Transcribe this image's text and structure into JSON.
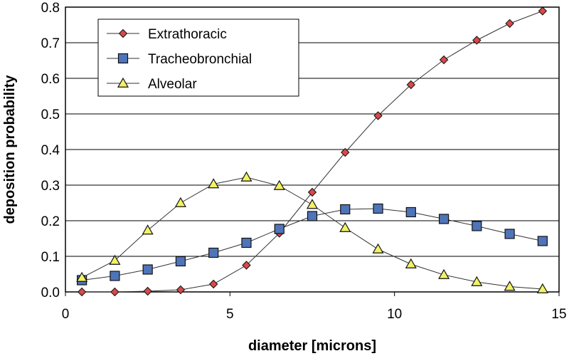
{
  "chart_data": {
    "type": "line",
    "title": "",
    "xlabel": "diameter [microns]",
    "ylabel": "deposition probability",
    "xlim": [
      0,
      15
    ],
    "ylim": [
      0,
      0.8
    ],
    "x_ticks": [
      "0",
      "5",
      "10",
      "15"
    ],
    "y_ticks": [
      "0.0",
      "0.1",
      "0.2",
      "0.3",
      "0.4",
      "0.5",
      "0.6",
      "0.7",
      "0.8"
    ],
    "grid": "horizontal",
    "legend_position": "top-left",
    "x": [
      0.5,
      1.5,
      2.5,
      3.5,
      4.5,
      5.5,
      6.5,
      7.5,
      8.5,
      9.5,
      10.5,
      11.5,
      12.5,
      13.5,
      14.5
    ],
    "series": [
      {
        "name": "Extrathoracic",
        "marker": "diamond",
        "color": "#d94848",
        "values": [
          0.0,
          0.0,
          0.002,
          0.006,
          0.022,
          0.075,
          0.165,
          0.28,
          0.392,
          0.495,
          0.582,
          0.652,
          0.707,
          0.754,
          0.789
        ]
      },
      {
        "name": "Tracheobronchial",
        "marker": "square",
        "color": "#4f74b8",
        "values": [
          0.033,
          0.045,
          0.063,
          0.086,
          0.11,
          0.138,
          0.177,
          0.213,
          0.232,
          0.234,
          0.224,
          0.205,
          0.185,
          0.163,
          0.143
        ]
      },
      {
        "name": "Alveolar",
        "marker": "triangle",
        "color": "#f2f266",
        "values": [
          0.04,
          0.088,
          0.173,
          0.25,
          0.303,
          0.322,
          0.298,
          0.245,
          0.18,
          0.12,
          0.078,
          0.048,
          0.028,
          0.015,
          0.008
        ]
      }
    ]
  }
}
